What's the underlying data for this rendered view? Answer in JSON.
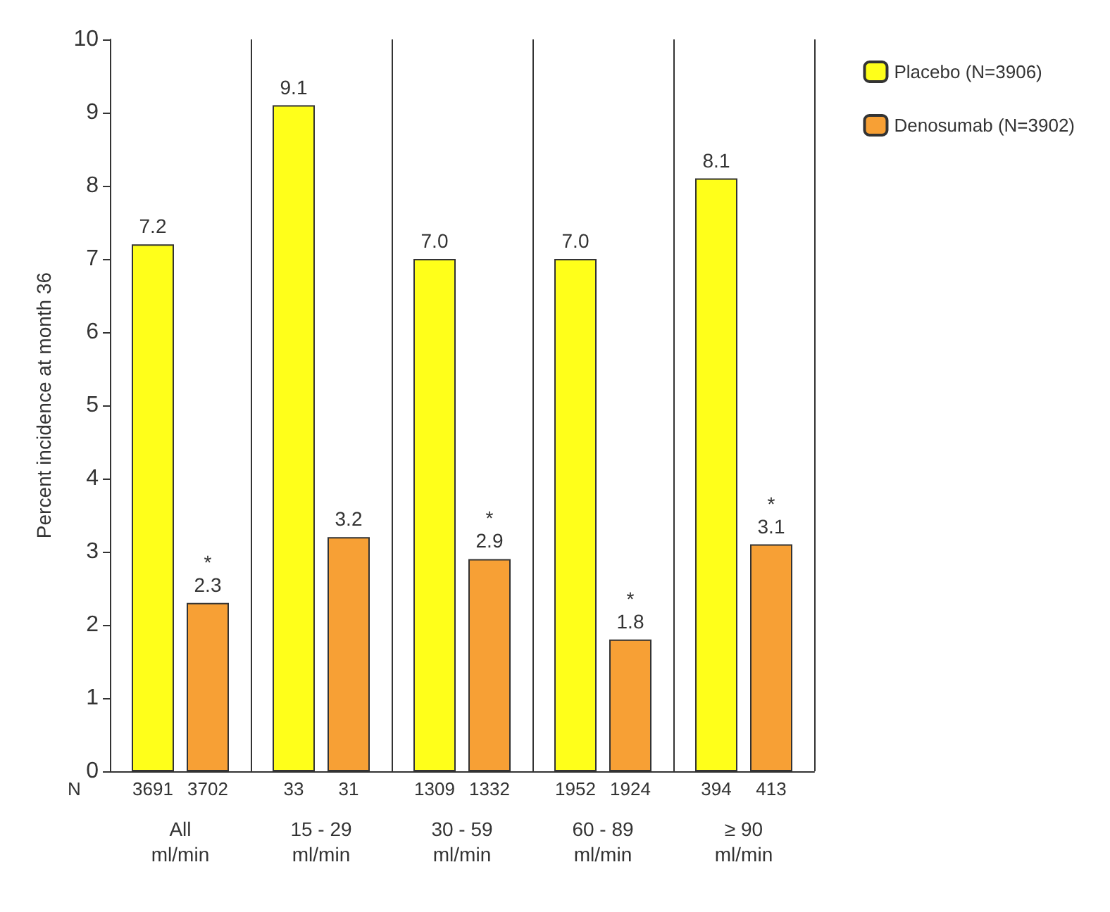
{
  "chart_data": {
    "type": "bar",
    "ylabel": "Percent incidence at month 36",
    "categories": [
      "All\nml/min",
      "15 - 29\nml/min",
      "30 - 59\nml/min",
      "60 - 89\nml/min",
      "≥ 90\nml/min"
    ],
    "series": [
      {
        "name": "Placebo (N=3906)",
        "color": "#ffff1a",
        "values": [
          7.2,
          9.1,
          7.0,
          7.0,
          8.1
        ],
        "value_labels": [
          "7.2",
          "9.1",
          "7.0",
          "7.0",
          "8.1"
        ]
      },
      {
        "name": "Denosumab (N=3902)",
        "color": "#f7a035",
        "values": [
          2.3,
          3.2,
          2.9,
          1.8,
          3.1
        ],
        "value_labels": [
          "*\n2.3",
          "3.2",
          "*\n2.9",
          "*\n1.8",
          "*\n3.1"
        ]
      }
    ],
    "ylim": [
      0,
      10
    ],
    "yticks": [
      0,
      1,
      2,
      3,
      4,
      5,
      6,
      7,
      8,
      9,
      10
    ],
    "grid": "x",
    "legend": "top right",
    "annotations": [
      "N",
      "3691",
      "3702",
      "33",
      "31",
      "1309",
      "1332",
      "1952",
      "1924",
      "394",
      "413"
    ]
  }
}
